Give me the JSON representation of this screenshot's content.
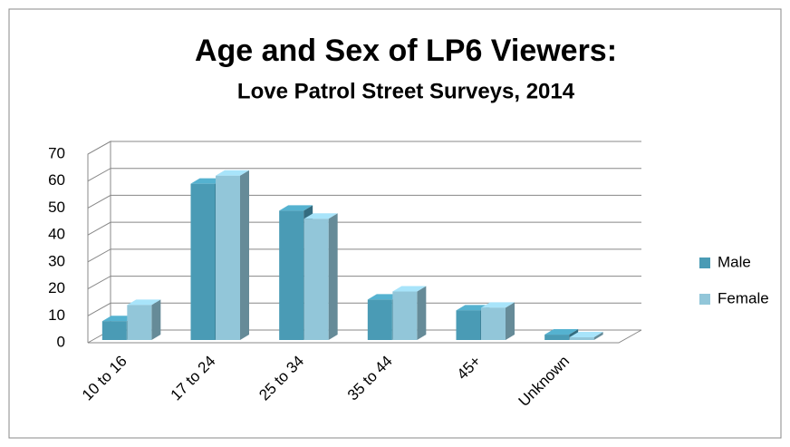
{
  "chart_data": {
    "type": "bar3d",
    "title": "Age and Sex of LP6 Viewers:",
    "subtitle": "Love Patrol Street Surveys, 2014",
    "categories": [
      "10 to 16",
      "17 to 24",
      "25 to 34",
      "35 to 44",
      "45+",
      "Unknown"
    ],
    "series": [
      {
        "name": "Male",
        "color": "#4a9bb5",
        "values": [
          7,
          58,
          48,
          15,
          11,
          2
        ]
      },
      {
        "name": "Female",
        "color": "#92c6d9",
        "values": [
          13,
          61,
          45,
          18,
          12,
          1
        ]
      }
    ],
    "ylim": [
      0,
      70
    ],
    "yticks": [
      0,
      10,
      20,
      30,
      40,
      50,
      60,
      70
    ],
    "grid": true,
    "legend": "right"
  }
}
